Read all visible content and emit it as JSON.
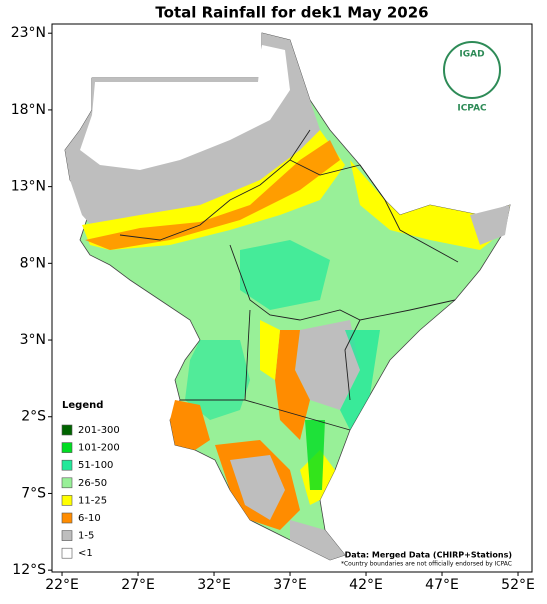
{
  "title": "Total Rainfall for dek1 May 2026",
  "map": {
    "xlim": [
      21.34,
      52.92
    ],
    "ylim": [
      -12.12,
      23.6
    ],
    "lon_ticks": [
      {
        "value": 22,
        "label": "22°E"
      },
      {
        "value": 27,
        "label": "27°E"
      },
      {
        "value": 32,
        "label": "32°E"
      },
      {
        "value": 37,
        "label": "37°E"
      },
      {
        "value": 42,
        "label": "42°E"
      },
      {
        "value": 47,
        "label": "47°E"
      },
      {
        "value": 52,
        "label": "52°E"
      }
    ],
    "lat_ticks": [
      {
        "value": 23,
        "label": "23°N"
      },
      {
        "value": 18,
        "label": "18°N"
      },
      {
        "value": 13,
        "label": "13°N"
      },
      {
        "value": 8,
        "label": "8°N"
      },
      {
        "value": 3,
        "label": "3°N"
      },
      {
        "value": -2,
        "label": "2°S"
      },
      {
        "value": -7,
        "label": "7°S"
      },
      {
        "value": -12,
        "label": "12°S"
      }
    ]
  },
  "legend": {
    "title": "Legend",
    "items": [
      {
        "label": "201-300",
        "color": "#006400"
      },
      {
        "label": "101-200",
        "color": "#00dd22"
      },
      {
        "label": "51-100",
        "color": "#22e89a"
      },
      {
        "label": "26-50",
        "color": "#98f098"
      },
      {
        "label": "11-25",
        "color": "#ffff00"
      },
      {
        "label": "6-10",
        "color": "#ff8c00"
      },
      {
        "label": "1-5",
        "color": "#bebebe"
      },
      {
        "label": "<1",
        "color": "#ffffff"
      }
    ]
  },
  "source": "Data: Merged Data (CHIRP+Stations)",
  "note": "*Country boundaries are not officially endorsed by ICPAC",
  "logo": {
    "name": "IGAD",
    "org": "ICPAC"
  }
}
